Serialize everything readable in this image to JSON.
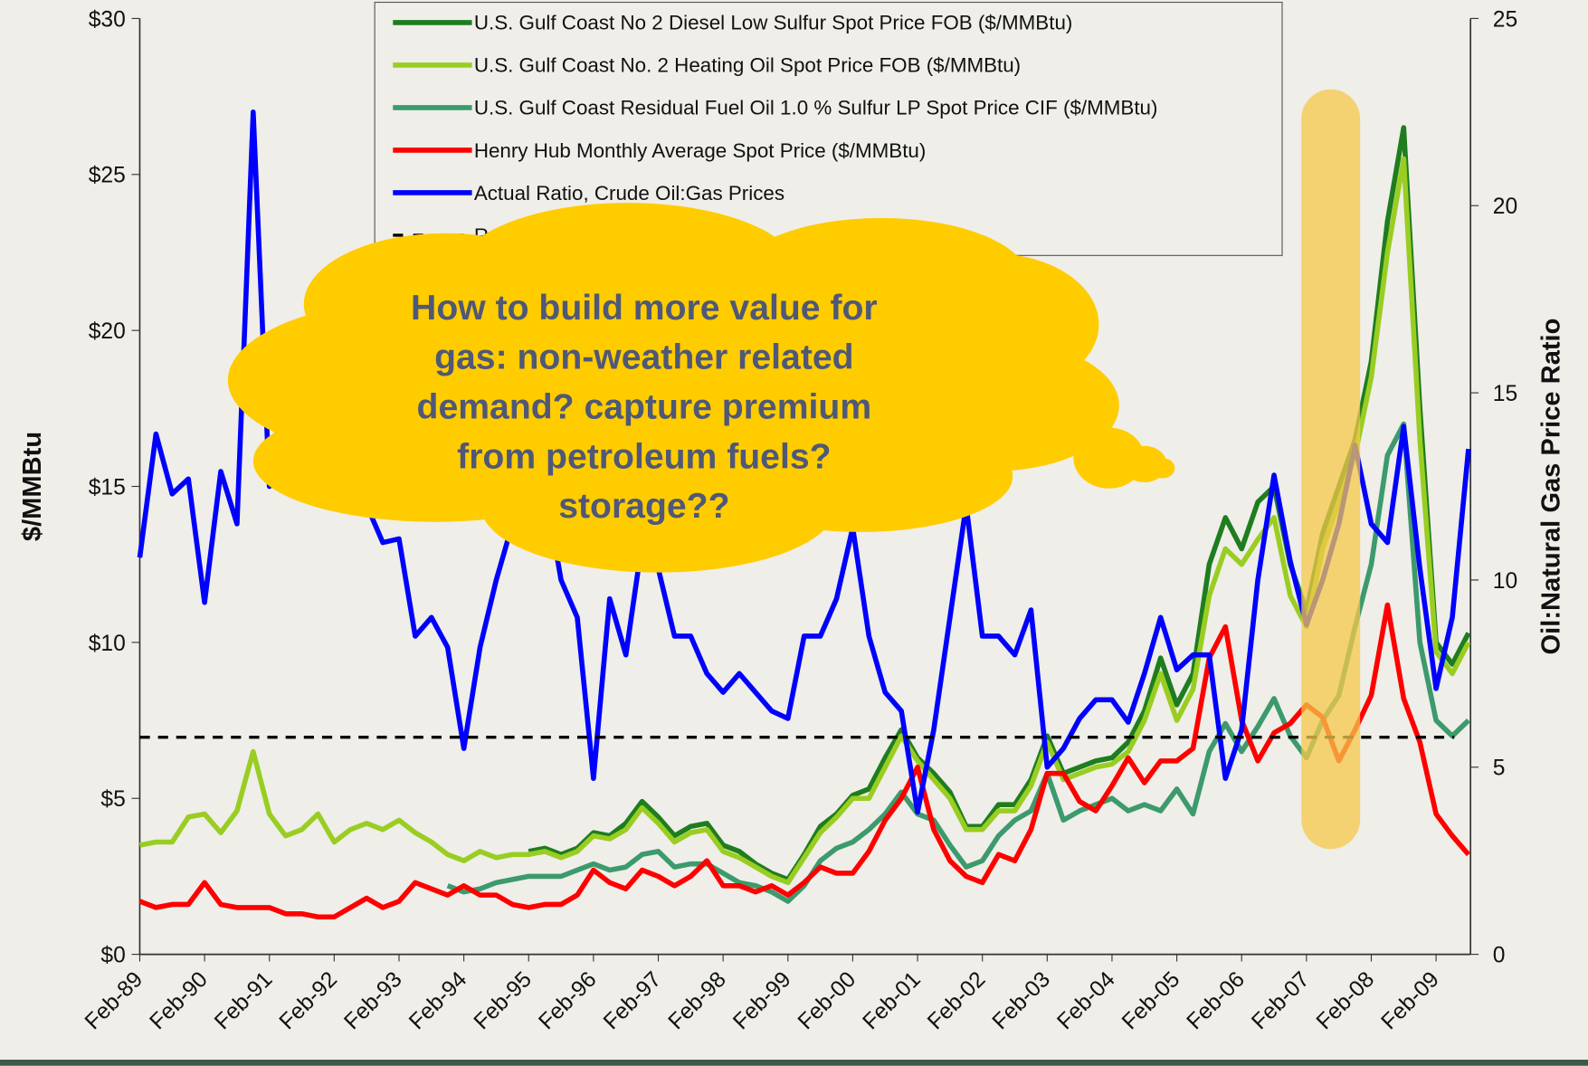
{
  "chart_data": {
    "type": "line",
    "y_label": "$/MMBtu",
    "y2_label": "Oil:Natural Gas Price Ratio",
    "annotation": [
      "How to build more value for",
      "gas: non-weather related",
      "demand? capture premium",
      "from petroleum fuels?",
      "storage??"
    ],
    "categories": [
      "Feb-89",
      null,
      null,
      null,
      "Feb-90",
      null,
      null,
      null,
      "Feb-91",
      null,
      null,
      null,
      "Feb-92",
      null,
      null,
      null,
      "Feb-93",
      null,
      null,
      null,
      "Feb-94",
      null,
      null,
      null,
      "Feb-95",
      null,
      null,
      null,
      "Feb-96",
      null,
      null,
      null,
      "Feb-97",
      null,
      null,
      null,
      "Feb-98",
      null,
      null,
      null,
      "Feb-99",
      null,
      null,
      null,
      "Feb-00",
      null,
      null,
      null,
      "Feb-01",
      null,
      null,
      null,
      "Feb-02",
      null,
      null,
      null,
      "Feb-03",
      null,
      null,
      null,
      "Feb-04",
      null,
      null,
      null,
      "Feb-05",
      null,
      null,
      null,
      "Feb-06",
      null,
      null,
      null,
      "Feb-07",
      null,
      null,
      null,
      "Feb-08",
      null,
      null,
      null,
      "Feb-09",
      null,
      null
    ],
    "ylim": [
      0,
      30
    ],
    "yticks": [
      {
        "value": 0,
        "label": "$0"
      },
      {
        "value": 5,
        "label": "$5"
      },
      {
        "value": 10,
        "label": "$10"
      },
      {
        "value": 15,
        "label": "$15"
      },
      {
        "value": 20,
        "label": "$20"
      },
      {
        "value": 25,
        "label": "$25"
      },
      {
        "value": 30,
        "label": "$30"
      }
    ],
    "y2lim": [
      0,
      25
    ],
    "y2ticks": [
      0,
      5,
      10,
      15,
      20,
      25
    ],
    "series": [
      {
        "name": "U.S. Gulf Coast No 2 Diesel Low Sulfur Spot Price FOB ($/MMBtu)",
        "color": "#1e7d1e",
        "values": [
          null,
          null,
          null,
          null,
          null,
          null,
          null,
          null,
          null,
          null,
          null,
          null,
          null,
          null,
          null,
          null,
          null,
          null,
          null,
          null,
          null,
          null,
          null,
          null,
          3.3,
          3.4,
          3.2,
          3.4,
          3.9,
          3.8,
          4.2,
          4.9,
          4.4,
          3.8,
          4.1,
          4.2,
          3.5,
          3.3,
          2.9,
          2.6,
          2.4,
          3.2,
          4.1,
          4.5,
          5.1,
          5.3,
          6.3,
          7.2,
          6.3,
          5.8,
          5.2,
          4.1,
          4.1,
          4.8,
          4.8,
          5.6,
          7.0,
          5.8,
          6.0,
          6.2,
          6.3,
          6.8,
          7.8,
          9.5,
          8.0,
          9.0,
          12.5,
          14.0,
          13.0,
          14.5,
          15.0,
          12.5,
          11.0,
          13.5,
          15.0,
          16.5,
          19.0,
          23.5,
          26.5,
          17.5,
          10.0,
          9.3,
          10.3
        ]
      },
      {
        "name": "U.S. Gulf Coast No. 2 Heating Oil Spot Price FOB ($/MMBtu)",
        "color": "#9acd22",
        "values": [
          3.5,
          3.6,
          3.6,
          4.4,
          4.5,
          3.9,
          4.6,
          6.5,
          4.5,
          3.8,
          4.0,
          4.5,
          3.6,
          4.0,
          4.2,
          4.0,
          4.3,
          3.9,
          3.6,
          3.2,
          3.0,
          3.3,
          3.1,
          3.2,
          3.2,
          3.3,
          3.1,
          3.3,
          3.8,
          3.7,
          4.0,
          4.7,
          4.2,
          3.6,
          3.9,
          4.0,
          3.3,
          3.1,
          2.8,
          2.5,
          2.3,
          3.1,
          3.9,
          4.4,
          5.0,
          5.0,
          6.0,
          7.0,
          6.2,
          5.6,
          5.0,
          4.0,
          4.0,
          4.6,
          4.6,
          5.4,
          6.8,
          5.6,
          5.8,
          6.0,
          6.1,
          6.5,
          7.5,
          9.0,
          7.5,
          8.5,
          11.5,
          13.0,
          12.5,
          13.3,
          14.0,
          11.5,
          10.5,
          13.0,
          14.5,
          16.0,
          18.5,
          22.5,
          25.5,
          16.5,
          9.7,
          9.0,
          10.0
        ]
      },
      {
        "name": "U.S. Gulf Coast Residual Fuel Oil 1.0 % Sulfur LP Spot Price CIF ($/MMBtu)",
        "color": "#3c9a6c",
        "values": [
          null,
          null,
          null,
          null,
          null,
          null,
          null,
          null,
          null,
          null,
          null,
          null,
          null,
          null,
          null,
          null,
          null,
          null,
          null,
          2.2,
          2.0,
          2.1,
          2.3,
          2.4,
          2.5,
          2.5,
          2.5,
          2.7,
          2.9,
          2.7,
          2.8,
          3.2,
          3.3,
          2.8,
          2.9,
          2.9,
          2.6,
          2.3,
          2.2,
          2.0,
          1.7,
          2.2,
          3.0,
          3.4,
          3.6,
          4.0,
          4.5,
          5.2,
          4.5,
          4.3,
          3.5,
          2.8,
          3.0,
          3.8,
          4.3,
          4.6,
          5.8,
          4.3,
          4.6,
          4.8,
          5.0,
          4.6,
          4.8,
          4.6,
          5.3,
          4.5,
          6.5,
          7.4,
          6.5,
          7.3,
          8.2,
          7.0,
          6.3,
          7.5,
          8.3,
          10.5,
          12.5,
          16.0,
          17.0,
          10.0,
          7.5,
          7.0,
          7.5
        ]
      },
      {
        "name": "Henry Hub Monthly Average Spot Price ($/MMBtu)",
        "color": "#ff0000",
        "values": [
          1.7,
          1.5,
          1.6,
          1.6,
          2.3,
          1.6,
          1.5,
          1.5,
          1.5,
          1.3,
          1.3,
          1.2,
          1.2,
          1.5,
          1.8,
          1.5,
          1.7,
          2.3,
          2.1,
          1.9,
          2.2,
          1.9,
          1.9,
          1.6,
          1.5,
          1.6,
          1.6,
          1.9,
          2.7,
          2.3,
          2.1,
          2.7,
          2.5,
          2.2,
          2.5,
          3.0,
          2.2,
          2.2,
          2.0,
          2.2,
          1.9,
          2.3,
          2.8,
          2.6,
          2.6,
          3.3,
          4.3,
          5.0,
          6.0,
          4.0,
          3.0,
          2.5,
          2.3,
          3.2,
          3.0,
          4.0,
          5.8,
          5.8,
          4.9,
          4.6,
          5.4,
          6.3,
          5.5,
          6.2,
          6.2,
          6.6,
          9.5,
          10.5,
          7.5,
          6.2,
          7.1,
          7.4,
          8.0,
          7.6,
          6.2,
          7.2,
          8.3,
          11.2,
          8.2,
          6.8,
          4.5,
          3.8,
          3.2
        ]
      },
      {
        "name": "Actual Ratio, Crude Oil:Gas Prices",
        "color": "#0000ff",
        "axis": "y2",
        "values": [
          10.6,
          13.9,
          12.3,
          12.7,
          9.4,
          12.9,
          11.5,
          22.5,
          12.5,
          14.0,
          13.5,
          16.0,
          17.5,
          14.0,
          12.0,
          11.0,
          11.1,
          8.5,
          9.0,
          8.2,
          5.5,
          8.2,
          10.0,
          11.5,
          11.5,
          12.5,
          10.0,
          9.0,
          4.7,
          9.5,
          8.0,
          11.0,
          10.3,
          8.5,
          8.5,
          7.5,
          7.0,
          7.5,
          7.0,
          6.5,
          6.3,
          8.5,
          8.5,
          9.5,
          11.4,
          8.5,
          7.0,
          6.5,
          3.8,
          6.0,
          9.0,
          12.0,
          8.5,
          8.5,
          8.0,
          9.2,
          5.0,
          5.5,
          6.3,
          6.8,
          6.8,
          6.2,
          7.5,
          9.0,
          7.6,
          8.0,
          8.0,
          4.7,
          6.0,
          10.0,
          12.8,
          10.5,
          8.8,
          10.0,
          11.5,
          13.6,
          11.5,
          11.0,
          14.1,
          10.3,
          7.1,
          9.0,
          13.5
        ]
      }
    ],
    "reference_line": {
      "name": "Rough 6:1 Oil:Nat Gas",
      "value": 5.8,
      "axis": "y2",
      "color": "#000000"
    }
  }
}
